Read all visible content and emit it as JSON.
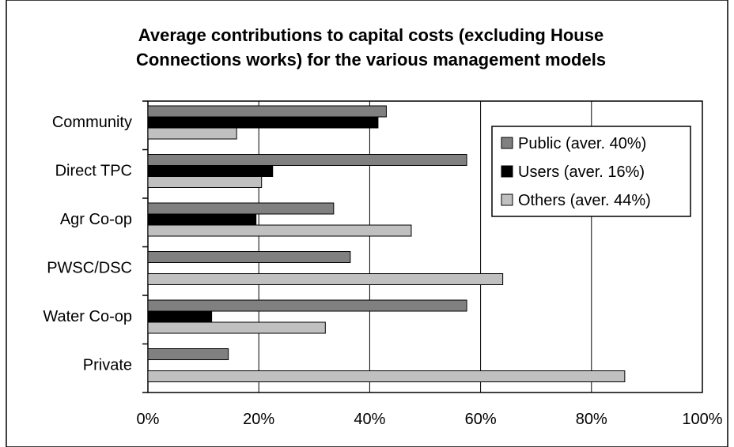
{
  "chart_data": {
    "type": "bar",
    "orientation": "horizontal",
    "title": "Average contributions to capital costs (excluding House Connections works) for the various management models",
    "title_lines": [
      "Average contributions to capital costs (excluding House",
      "Connections works) for the various management models"
    ],
    "xlabel": "",
    "ylabel": "",
    "categories": [
      "Community",
      "Direct TPC",
      "Agr Co-op",
      "PWSC/DSC",
      "Water Co-op",
      "Private"
    ],
    "series": [
      {
        "name": "Public (aver. 40%)",
        "color": "#808080",
        "values": [
          43,
          57.5,
          33.5,
          36.5,
          57.5,
          14.5
        ]
      },
      {
        "name": "Users (aver. 16%)",
        "color": "#000000",
        "values": [
          41.5,
          22.5,
          19.5,
          0,
          11.5,
          0
        ]
      },
      {
        "name": "Others (aver. 44%)",
        "color": "#c0c0c0",
        "values": [
          16,
          20.5,
          47.5,
          64,
          32,
          86
        ]
      }
    ],
    "xlim": [
      0,
      100
    ],
    "xticks": [
      0,
      20,
      40,
      60,
      80,
      100
    ],
    "xtick_labels": [
      "0%",
      "20%",
      "40%",
      "60%",
      "80%",
      "100%"
    ],
    "grid": "vertical",
    "legend_position": "top-right"
  }
}
